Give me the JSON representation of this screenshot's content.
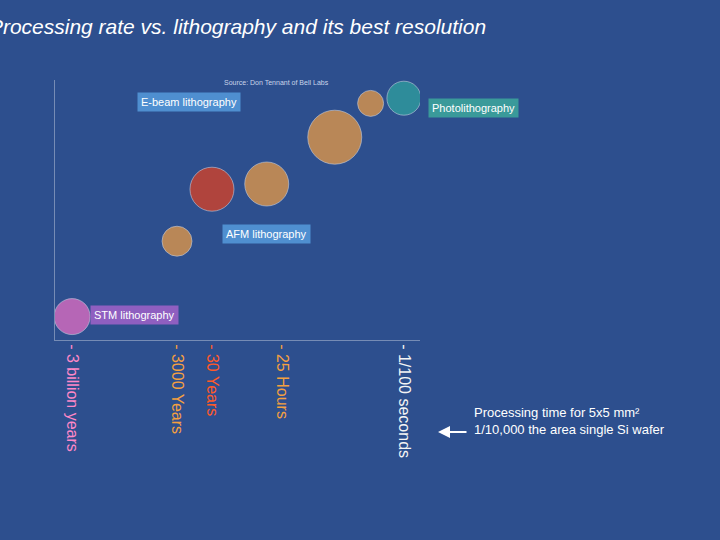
{
  "chart_data": {
    "type": "scatter",
    "title": "Processing rate vs. lithography and its best resolution",
    "source": "Source: Don Tennant of Bell Labs",
    "x": [
      0.01,
      0.8,
      90,
      700000,
      947000000,
      94700000000,
      94700000000000000
    ],
    "y": [
      93,
      91,
      78,
      60,
      58,
      38,
      9
    ],
    "sizes": [
      34,
      26,
      54,
      44,
      44,
      30,
      36
    ],
    "colors": [
      "#2fa6a0",
      "#f5a040",
      "#f5a040",
      "#f5a040",
      "#e8401c",
      "#f5a040",
      "#f070c8"
    ],
    "log": "x",
    "xlim": [
      900000000000000000,
      0.0012
    ],
    "ylim": [
      0,
      100
    ],
    "xticks": [
      {
        "value": 94700000000000000,
        "label": "- 3 billion years"
      },
      {
        "value": 94700000000,
        "label": "- 3000 Years"
      },
      {
        "value": 947000000,
        "label": "- 30 Years"
      },
      {
        "value": 90000,
        "label": "- 25 Hours"
      },
      {
        "value": 0.01,
        "label": "- 1/100 seconds"
      }
    ],
    "tick_labels": "x",
    "grid": false,
    "labels": [
      "E-beam lithography",
      "Photolithography",
      "AFM lithography",
      "STM lithography"
    ],
    "note": [
      "Processing time for 5x5 mm²",
      "1/10,000 the area single Si wafer"
    ]
  }
}
